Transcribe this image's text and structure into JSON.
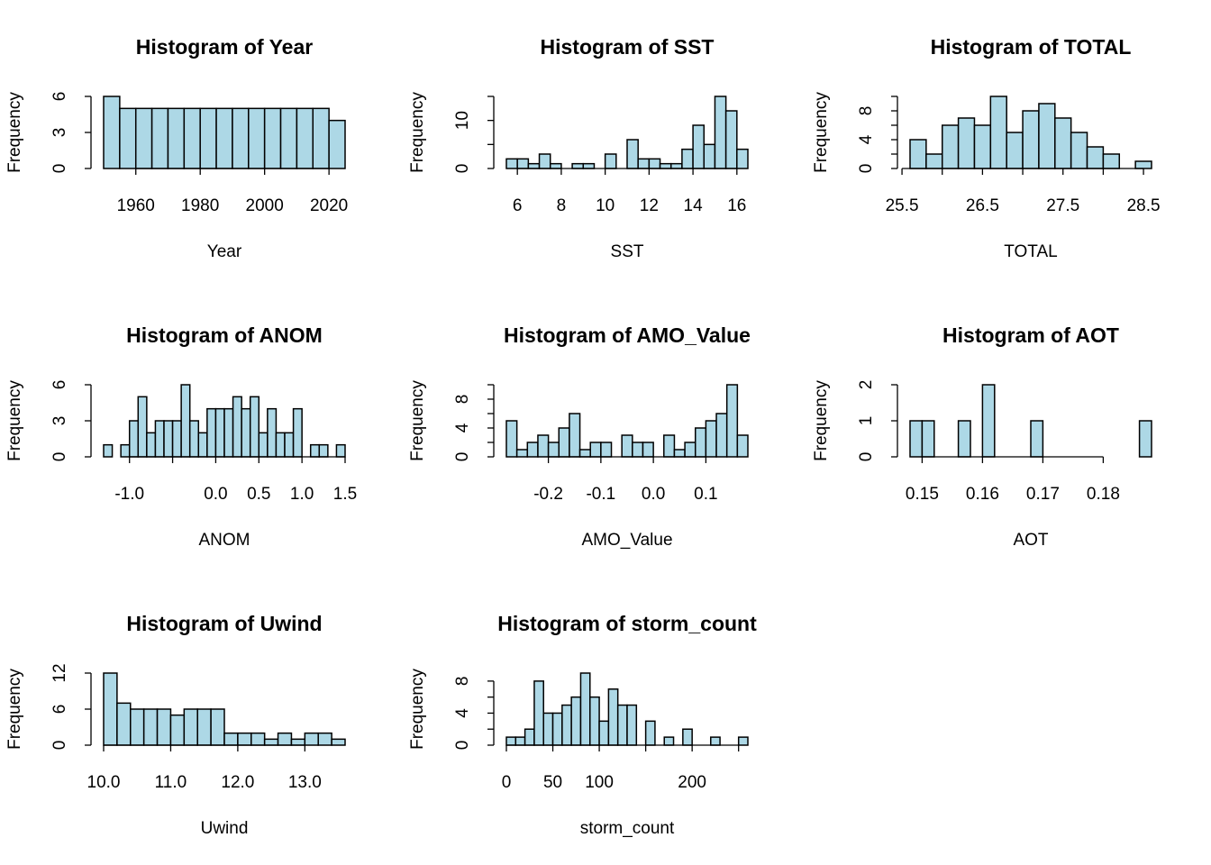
{
  "chart_data": [
    {
      "type": "histogram",
      "title": "Histogram of Year",
      "xlabel": "Year",
      "ylabel": "Frequency",
      "color": "#add8e6",
      "bins": [
        1950,
        1955,
        1960,
        1965,
        1970,
        1975,
        1980,
        1985,
        1990,
        1995,
        2000,
        2005,
        2010,
        2015,
        2020,
        2025
      ],
      "values": [
        6,
        5,
        5,
        5,
        5,
        5,
        5,
        5,
        5,
        5,
        5,
        5,
        5,
        5,
        4
      ],
      "xlim": [
        1950,
        2025
      ],
      "ylim": [
        0,
        6
      ],
      "xticks": [
        1960,
        1980,
        2000,
        2020
      ],
      "yticks": [
        0,
        3,
        6
      ]
    },
    {
      "type": "histogram",
      "title": "Histogram of SST",
      "xlabel": "SST",
      "ylabel": "Frequency",
      "color": "#add8e6",
      "bins": [
        5.5,
        6,
        6.5,
        7,
        7.5,
        8,
        8.5,
        9,
        9.5,
        10,
        10.5,
        11,
        11.5,
        12,
        12.5,
        13,
        13.5,
        14,
        14.5,
        15,
        15.5,
        16,
        16.5
      ],
      "values": [
        2,
        2,
        1,
        3,
        1,
        0,
        1,
        1,
        0,
        3,
        0,
        6,
        2,
        2,
        1,
        1,
        4,
        9,
        5,
        15,
        12,
        4
      ],
      "xlim": [
        5.5,
        16.5
      ],
      "ylim": [
        0,
        15
      ],
      "xticks": [
        6,
        8,
        10,
        12,
        14,
        16
      ],
      "yticks": [
        0,
        {
          "value": 5,
          "label": null
        },
        10,
        {
          "value": 15,
          "label": null
        }
      ]
    },
    {
      "type": "histogram",
      "title": "Histogram of TOTAL",
      "xlabel": "TOTAL",
      "ylabel": "Frequency",
      "color": "#add8e6",
      "bins": [
        25.6,
        25.8,
        26,
        26.2,
        26.4,
        26.6,
        26.8,
        27,
        27.2,
        27.4,
        27.6,
        27.8,
        28,
        28.2,
        28.4,
        28.6
      ],
      "values": [
        4,
        2,
        6,
        7,
        6,
        10,
        5,
        8,
        9,
        7,
        5,
        3,
        2,
        0,
        1
      ],
      "xlim": [
        25.6,
        28.6
      ],
      "ylim": [
        0,
        10
      ],
      "xticks": [
        25.5,
        {
          "value": 26,
          "label": null
        },
        26.5,
        {
          "value": 27,
          "label": null
        },
        27.5,
        {
          "value": 28,
          "label": null
        },
        28.5
      ],
      "yticks": [
        0,
        {
          "value": 2,
          "label": null
        },
        4,
        {
          "value": 6,
          "label": null
        },
        8,
        {
          "value": 10,
          "label": null
        }
      ]
    },
    {
      "type": "histogram",
      "title": "Histogram of ANOM",
      "xlabel": "ANOM",
      "ylabel": "Frequency",
      "color": "#add8e6",
      "bins": [
        -1.3,
        -1.2,
        -1.1,
        -1,
        -0.9,
        -0.8,
        -0.7,
        -0.6,
        -0.5,
        -0.4,
        -0.3,
        -0.2,
        -0.1,
        0,
        0.1,
        0.2,
        0.3,
        0.4,
        0.5,
        0.6,
        0.7,
        0.8,
        0.9,
        1,
        1.1,
        1.2,
        1.3,
        1.4,
        1.5
      ],
      "values": [
        1,
        0,
        1,
        3,
        5,
        2,
        3,
        3,
        3,
        6,
        3,
        2,
        4,
        4,
        4,
        5,
        4,
        5,
        2,
        4,
        2,
        2,
        4,
        0,
        1,
        1,
        0,
        1
      ],
      "xlim": [
        -1.3,
        1.5
      ],
      "ylim": [
        0,
        6
      ],
      "xticks": [
        {
          "value": -1,
          "label": "-1.0"
        },
        {
          "value": -0.5,
          "label": null
        },
        {
          "value": 0,
          "label": "0.0"
        },
        0.5,
        {
          "value": 1,
          "label": "1.0"
        },
        1.5
      ],
      "yticks": [
        0,
        3,
        6
      ]
    },
    {
      "type": "histogram",
      "title": "Histogram of AMO_Value",
      "xlabel": "AMO_Value",
      "ylabel": "Frequency",
      "color": "#add8e6",
      "bins": [
        -0.28,
        -0.26,
        -0.24,
        -0.22,
        -0.2,
        -0.18,
        -0.16,
        -0.14,
        -0.12,
        -0.1,
        -0.08,
        -0.06,
        -0.04,
        -0.02,
        0,
        0.02,
        0.04,
        0.06,
        0.08,
        0.1,
        0.12,
        0.14,
        0.16,
        0.18
      ],
      "values": [
        5,
        1,
        2,
        3,
        2,
        4,
        6,
        1,
        2,
        2,
        0,
        3,
        2,
        2,
        0,
        3,
        1,
        2,
        4,
        5,
        6,
        10,
        3
      ],
      "xlim": [
        -0.28,
        0.18
      ],
      "ylim": [
        0,
        10
      ],
      "xticks": [
        -0.2,
        -0.1,
        {
          "value": 0,
          "label": "0.0"
        },
        0.1
      ],
      "yticks": [
        0,
        {
          "value": 2,
          "label": null
        },
        4,
        {
          "value": 6,
          "label": null
        },
        8,
        {
          "value": 10,
          "label": null
        }
      ]
    },
    {
      "type": "histogram",
      "title": "Histogram of AOT",
      "xlabel": "AOT",
      "ylabel": "Frequency",
      "color": "#add8e6",
      "bins": [
        0.148,
        0.15,
        0.152,
        0.154,
        0.156,
        0.158,
        0.16,
        0.162,
        0.164,
        0.166,
        0.168,
        0.17,
        0.172,
        0.174,
        0.176,
        0.178,
        0.18,
        0.182,
        0.184,
        0.186,
        0.188
      ],
      "values": [
        1,
        1,
        0,
        0,
        1,
        0,
        2,
        0,
        0,
        0,
        1,
        0,
        0,
        0,
        0,
        0,
        0,
        0,
        0,
        1
      ],
      "xlim": [
        0.148,
        0.188
      ],
      "ylim": [
        0,
        2
      ],
      "xticks": [
        0.15,
        0.16,
        0.17,
        0.18
      ],
      "yticks": [
        0,
        1,
        2
      ]
    },
    {
      "type": "histogram",
      "title": "Histogram of Uwind",
      "xlabel": "Uwind",
      "ylabel": "Frequency",
      "color": "#add8e6",
      "bins": [
        10,
        10.2,
        10.4,
        10.6,
        10.8,
        11,
        11.2,
        11.4,
        11.6,
        11.8,
        12,
        12.2,
        12.4,
        12.6,
        12.8,
        13,
        13.2,
        13.4,
        13.6
      ],
      "values": [
        12,
        7,
        6,
        6,
        6,
        5,
        6,
        6,
        6,
        2,
        2,
        2,
        1,
        2,
        1,
        2,
        2,
        1
      ],
      "xlim": [
        10,
        13.6
      ],
      "ylim": [
        0,
        12
      ],
      "xticks": [
        {
          "value": 10,
          "label": "10.0"
        },
        {
          "value": 11,
          "label": "11.0"
        },
        {
          "value": 12,
          "label": "12.0"
        },
        {
          "value": 13,
          "label": "13.0"
        }
      ],
      "yticks": [
        0,
        6,
        12
      ]
    },
    {
      "type": "histogram",
      "title": "Histogram of storm_count",
      "xlabel": "storm_count",
      "ylabel": "Frequency",
      "color": "#add8e6",
      "bins": [
        0,
        10,
        20,
        30,
        40,
        50,
        60,
        70,
        80,
        90,
        100,
        110,
        120,
        130,
        140,
        150,
        160,
        170,
        180,
        190,
        200,
        210,
        220,
        230,
        240,
        250,
        260
      ],
      "values": [
        1,
        1,
        2,
        8,
        4,
        4,
        5,
        6,
        9,
        6,
        3,
        7,
        5,
        5,
        0,
        3,
        0,
        1,
        0,
        2,
        0,
        0,
        1,
        0,
        0,
        1
      ],
      "xlim": [
        0,
        260
      ],
      "ylim": [
        0,
        9
      ],
      "xticks": [
        0,
        50,
        100,
        {
          "value": 150,
          "label": null
        },
        200,
        {
          "value": 250,
          "label": null
        }
      ],
      "yticks": [
        0,
        {
          "value": 2,
          "label": null
        },
        4,
        {
          "value": 6,
          "label": null
        },
        8
      ]
    }
  ]
}
